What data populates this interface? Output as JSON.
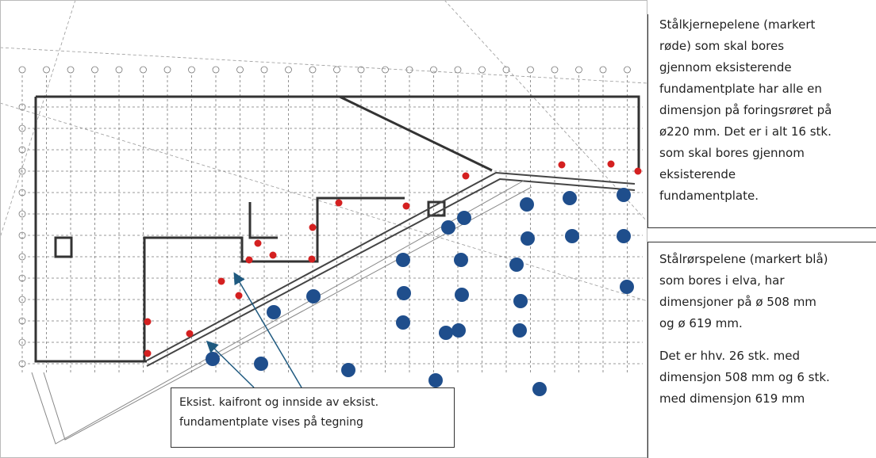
{
  "notes": {
    "red_piles": {
      "lines": [
        "Stålkjernepelene (markert",
        "røde) som skal bores",
        "gjennom eksisterende",
        "fundamentplate har alle en",
        "dimensjon på foringsrøret på",
        "ø220 mm. Det er i alt 16 stk.",
        "som skal bores gjennom",
        "eksisterende",
        "fundamentplate."
      ]
    },
    "blue_piles": {
      "paragraphs": [
        {
          "lines": [
            "Stålrørspelene (markert blå)",
            "som bores i elva, har",
            "dimensjoner på ø 508 mm",
            "og ø 619 mm."
          ]
        },
        {
          "lines": [
            "Det er hhv. 26 stk. med",
            "dimensjon 508 mm og 6 stk.",
            "med dimensjon 619 mm"
          ]
        }
      ]
    }
  },
  "callout": {
    "lines": [
      "Eksist. kaifront og innside av eksist.",
      "fundamentplate vises på tegning"
    ]
  }
}
